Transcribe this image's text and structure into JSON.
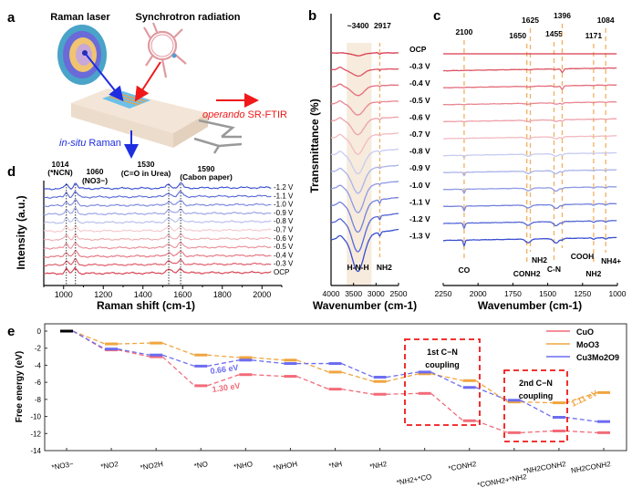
{
  "panel_labels": {
    "a": "a",
    "b": "b",
    "c": "c",
    "d": "d",
    "e": "e"
  },
  "schematic": {
    "raman_laser": "Raman laser",
    "synchrotron": "Synchrotron radiation",
    "ftir_italic": "operando",
    "ftir_rest": " SR-FTIR",
    "raman_italic": "in-situ",
    "raman_rest": " Raman",
    "colors": {
      "raman": "#1f2de0",
      "ftir": "#f01818",
      "slab": "#f3e6d8"
    }
  },
  "chart_data": [
    {
      "id": "d",
      "type": "line",
      "xlabel": "Raman shift (cm-1)",
      "ylabel": "Intensity (a.u.)",
      "xlim": [
        900,
        2100
      ],
      "xticks": [
        1000,
        1200,
        1400,
        1600,
        1800,
        2000
      ],
      "series_labels": [
        "-1.2 V",
        "-1.1 V",
        "-1.0 V",
        "-0.9 V",
        "-0.8 V",
        "-0.7 V",
        "-0.6 V",
        "-0.5 V",
        "-0.4 V",
        "-0.3 V",
        "OCP"
      ],
      "peaks": [
        {
          "value": "1014",
          "label": "(*NCN)",
          "x": 1014
        },
        {
          "value": "1060",
          "label": "(NO3−)",
          "x": 1060
        },
        {
          "value": "1530",
          "label": "(C=O in Urea)",
          "x": 1530
        },
        {
          "value": "1590",
          "label": "(Cabon paper)",
          "x": 1590
        }
      ]
    },
    {
      "id": "b",
      "type": "line",
      "xlabel": "Wavenumber (cm-1)",
      "ylabel": "Transmittance (%)",
      "xlim": [
        4000,
        2500
      ],
      "xticks": [
        4000,
        3500,
        3000,
        2500
      ],
      "series_labels": [
        "OCP",
        "-0.3 V",
        "-0.4 V",
        "-0.5 V",
        "-0.6 V",
        "-0.7 V",
        "-0.8 V",
        "-0.9 V",
        "-1.0 V",
        "-1.1 V",
        "-1.2 V",
        "-1.3 V"
      ],
      "top_labels": [
        {
          "text": "~3400",
          "x": 3400
        },
        {
          "text": "2917",
          "x": 2917
        }
      ],
      "bottom_labels": [
        {
          "text": "H-N-H",
          "x": 3400
        },
        {
          "text": "NH2",
          "x": 2917
        }
      ],
      "shaded_range": [
        3650,
        3100
      ]
    },
    {
      "id": "c",
      "type": "line",
      "xlabel": "Wavenumber (cm-1)",
      "xlim": [
        2250,
        1000
      ],
      "xticks": [
        2250,
        2000,
        1750,
        1500,
        1250,
        1000
      ],
      "top_labels": [
        {
          "text": "2100",
          "x": 2100
        },
        {
          "text": "1650",
          "x": 1650
        },
        {
          "text": "1625",
          "x": 1625
        },
        {
          "text": "1455",
          "x": 1455
        },
        {
          "text": "1396",
          "x": 1396
        },
        {
          "text": "1171",
          "x": 1171
        },
        {
          "text": "1084",
          "x": 1084
        }
      ],
      "bottom_labels": [
        {
          "text": "CO",
          "x": 2100
        },
        {
          "text": "CONH2",
          "x": 1650
        },
        {
          "text": "NH2",
          "x": 1625
        },
        {
          "text": "C-N",
          "x": 1455
        },
        {
          "text": "COOH",
          "x": 1396
        },
        {
          "text": "NH2",
          "x": 1171
        },
        {
          "text": "NH4+",
          "x": 1084
        }
      ]
    },
    {
      "id": "e",
      "type": "line",
      "ylabel": "Free energy (eV)",
      "ylim": [
        -14,
        0.8
      ],
      "yticks": [
        0,
        -2,
        -4,
        -6,
        -8,
        -10,
        -12,
        -14
      ],
      "categories": [
        "*NO3−",
        "*NO2",
        "*NO2H",
        "*NO",
        "*NHO",
        "*NHOH",
        "*NH",
        "*NH2",
        "*NH2+*CO",
        "*CONH2",
        "*CONH2+*NH2",
        "*NH2CONH2",
        "NH2CONH2"
      ],
      "series": [
        {
          "name": "CuO",
          "color": "#f26b78",
          "values": [
            0,
            -2.2,
            -3.0,
            -6.4,
            -5.1,
            -5.3,
            -6.8,
            -7.4,
            -7.3,
            -10.5,
            -11.9,
            -11.7,
            -11.9
          ]
        },
        {
          "name": "MoO3",
          "color": "#f0a540",
          "values": [
            0,
            -1.5,
            -1.4,
            -2.8,
            -3.1,
            -3.4,
            -4.8,
            -5.9,
            -5.0,
            -5.8,
            -8.3,
            -8.4,
            -7.2
          ]
        },
        {
          "name": "Cu3Mo2O9",
          "color": "#6c6cf0",
          "values": [
            0,
            -2.1,
            -2.8,
            -4.1,
            -3.4,
            -3.8,
            -3.8,
            -5.4,
            -4.8,
            -6.6,
            -8.1,
            -10.1,
            -10.6
          ]
        }
      ],
      "annotations": [
        {
          "text": "0.66 eV",
          "color": "#6c6cf0"
        },
        {
          "text": "1.30 eV",
          "color": "#f26b78"
        },
        {
          "text": "1.11 eV",
          "color": "#f0a540"
        }
      ],
      "boxes": [
        {
          "line1": "1st C−N",
          "line2": "coupling"
        },
        {
          "line1": "2nd C−N",
          "line2": "coupling"
        }
      ],
      "legend_position": "top-right",
      "start_color": "#000000"
    }
  ]
}
